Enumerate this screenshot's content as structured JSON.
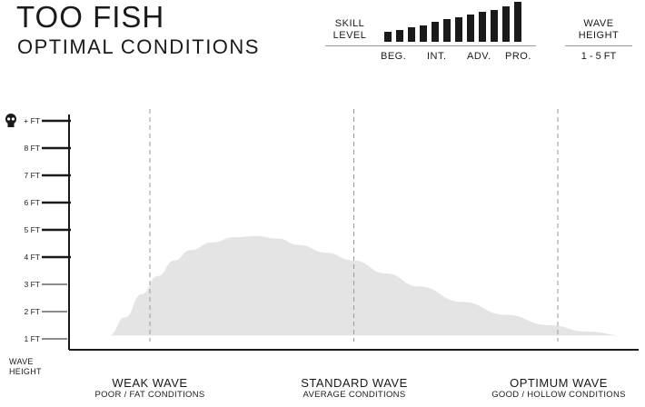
{
  "header": {
    "title": "TOO FISH",
    "subtitle": "OPTIMAL CONDITIONS"
  },
  "skill": {
    "label_line1": "SKILL",
    "label_line2": "LEVEL",
    "bar_heights_relative": [
      0.24,
      0.3,
      0.36,
      0.42,
      0.5,
      0.56,
      0.62,
      0.68,
      0.74,
      0.8,
      0.88,
      1.0
    ],
    "levels": [
      "BEG.",
      "INT.",
      "ADV.",
      "PRO."
    ]
  },
  "wave_height_box": {
    "label_line1": "WAVE",
    "label_line2": "HEIGHT",
    "value": "1 - 5 FT"
  },
  "chart_data": {
    "type": "area",
    "title": "",
    "ylabel_line1": "WAVE",
    "ylabel_line2": "HEIGHT",
    "yticks": [
      "1 FT",
      "2 FT",
      "3 FT",
      "4 FT",
      "5 FT",
      "6 FT",
      "7 FT",
      "8 FT",
      "+ FT"
    ],
    "ylim": [
      0.8,
      9.3
    ],
    "x_range": [
      0,
      1
    ],
    "categories": [
      {
        "title": "WEAK WAVE",
        "subtitle": "POOR / FAT CONDITIONS"
      },
      {
        "title": "STANDARD WAVE",
        "subtitle": "AVERAGE CONDITIONS"
      },
      {
        "title": "OPTIMUM WAVE",
        "subtitle": "GOOD / HOLLOW CONDITIONS"
      }
    ],
    "category_x": [
      0.14,
      0.5,
      0.86
    ],
    "series": [
      {
        "x": [
          0.05,
          0.08,
          0.11,
          0.14,
          0.17,
          0.2,
          0.24,
          0.28,
          0.32,
          0.36,
          0.4,
          0.45,
          0.5,
          0.56,
          0.62,
          0.7,
          0.78,
          0.86,
          0.93,
          1.0
        ],
        "y": [
          1.0,
          1.7,
          2.6,
          3.3,
          3.9,
          4.3,
          4.6,
          4.8,
          4.85,
          4.75,
          4.5,
          4.2,
          3.9,
          3.4,
          2.9,
          2.3,
          1.8,
          1.4,
          1.15,
          1.0
        ]
      }
    ],
    "fill_color": "#e4e4e4",
    "grid": "vertical dashed at categories"
  }
}
